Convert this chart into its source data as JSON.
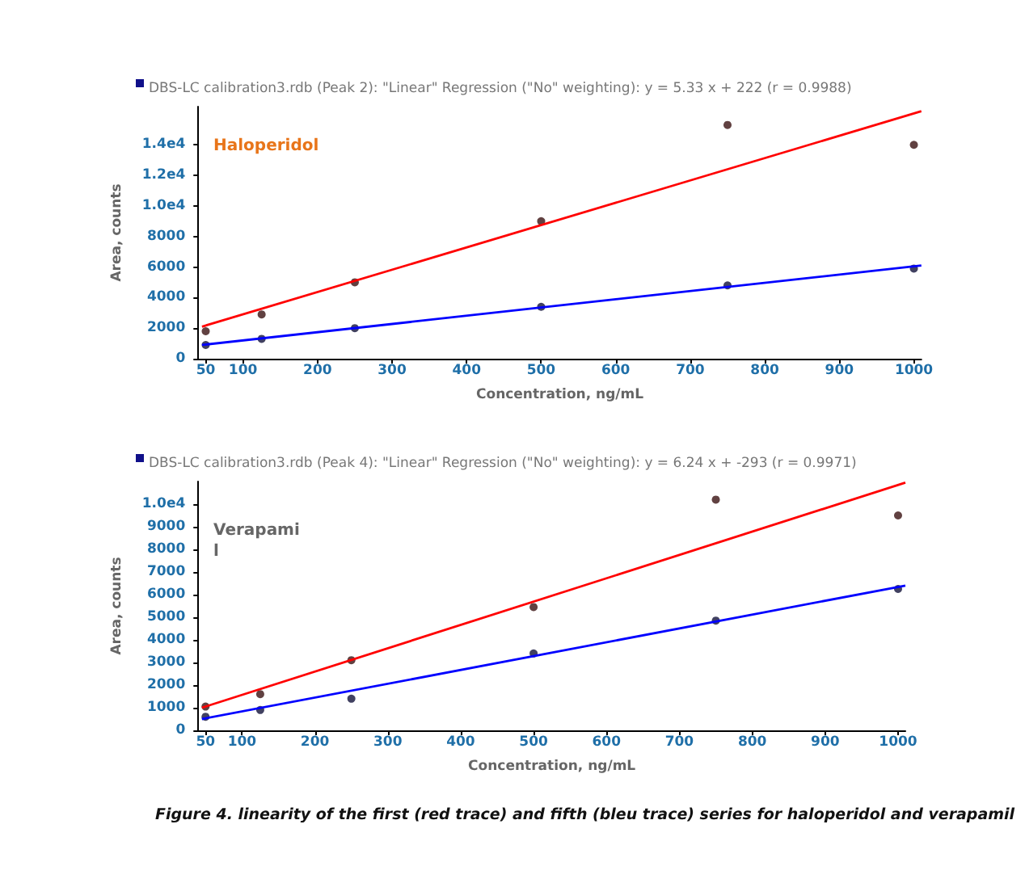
{
  "chart_data": [
    {
      "type": "scatter",
      "title": "DBS-LC calibration3.rdb (Peak 2): \"Linear\" Regression (\"No\" weighting): y = 5.33 x + 222 (r = 0.9988)",
      "xlabel": "Concentration, ng/mL",
      "ylabel": "Area, counts",
      "annotations": [
        "Haloperidol"
      ],
      "xlim": [
        40,
        1010
      ],
      "ylim": [
        0,
        16500
      ],
      "xticks": [
        50,
        100,
        200,
        300,
        400,
        500,
        600,
        700,
        800,
        900,
        {
          "value": 1000,
          "label": "1000"
        }
      ],
      "yticks": [
        0,
        2000,
        4000,
        6000,
        8000,
        {
          "value": 10000,
          "label": "1.0e4"
        },
        {
          "value": 12000,
          "label": "1.2e4"
        },
        {
          "value": 14000,
          "label": "1.4e4"
        }
      ],
      "grid": false,
      "marker": "circle",
      "series": [
        {
          "type": "line",
          "color": "#ff0000",
          "x": [
            45,
            1010
          ],
          "values": [
            2100,
            16200
          ],
          "marker": "none",
          "line_style": "solid"
        },
        {
          "type": "line",
          "color": "#0000ff",
          "x": [
            45,
            1010
          ],
          "values": [
            900,
            6100
          ],
          "marker": "none",
          "line_style": "solid"
        },
        {
          "color": "#3a1212",
          "x": [
            50,
            125,
            250,
            500,
            750,
            1000
          ],
          "values": [
            1800,
            2900,
            5000,
            9000,
            15300,
            14000
          ]
        },
        {
          "color": "#12123a",
          "x": [
            50,
            125,
            250,
            500,
            750,
            1000
          ],
          "values": [
            900,
            1300,
            2000,
            3400,
            4800,
            5900
          ]
        }
      ]
    },
    {
      "type": "scatter",
      "title": "DBS-LC calibration3.rdb (Peak 4): \"Linear\" Regression (\"No\" weighting): y = 6.24 x + -293 (r = 0.9971)",
      "xlabel": "Concentration, ng/mL",
      "ylabel": "Area, counts",
      "annotations": [
        "Verapami\nl",
        "Figure 4.  linearity of the first (red trace) and fifth (bleu trace) series for haloperidol and verapamil"
      ],
      "xlim": [
        40,
        1010
      ],
      "ylim": [
        0,
        11000
      ],
      "xticks": [
        50,
        100,
        200,
        300,
        400,
        500,
        600,
        700,
        800,
        900,
        {
          "value": 1000,
          "label": "1000"
        }
      ],
      "yticks": [
        0,
        1000,
        2000,
        3000,
        4000,
        5000,
        6000,
        7000,
        8000,
        9000,
        {
          "value": 10000,
          "label": "1.0e4"
        }
      ],
      "grid": false,
      "marker": "circle",
      "series": [
        {
          "type": "line",
          "color": "#ff0000",
          "x": [
            45,
            1010
          ],
          "values": [
            1000,
            10950
          ],
          "marker": "none",
          "line_style": "solid"
        },
        {
          "type": "line",
          "color": "#0000ff",
          "x": [
            45,
            1010
          ],
          "values": [
            500,
            6400
          ],
          "marker": "none",
          "line_style": "solid"
        },
        {
          "color": "#3a1212",
          "x": [
            50,
            125,
            250,
            500,
            750,
            1000
          ],
          "values": [
            1050,
            1600,
            3100,
            5450,
            10200,
            9500
          ]
        },
        {
          "color": "#12123a",
          "x": [
            50,
            125,
            250,
            500,
            750,
            1000
          ],
          "values": [
            600,
            900,
            1400,
            3400,
            4850,
            6250
          ]
        }
      ]
    }
  ]
}
